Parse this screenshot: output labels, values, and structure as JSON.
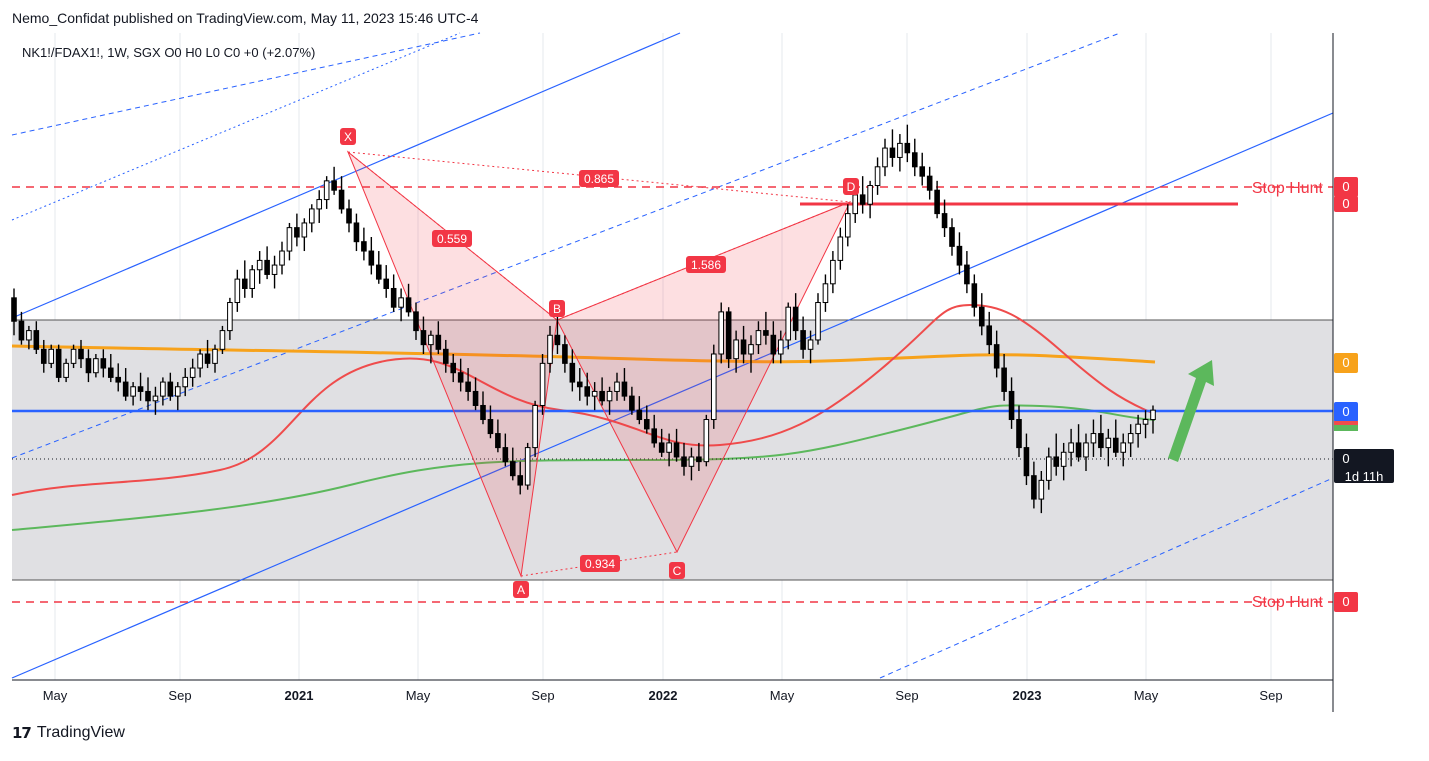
{
  "header": {
    "published": "Nemo_Confidat published on TradingView.com, May 11, 2023 15:46 UTC-4"
  },
  "brand": {
    "logo": "17",
    "name": "TradingView"
  },
  "colors": {
    "background": "#d9dbe0",
    "panel": "#ffffff",
    "up_candle": "#ffffff",
    "down_candle": "#000000",
    "wick": "#000000",
    "ma_red": "#ef4c4c",
    "ma_green": "#5cb85c",
    "ma_orange": "#f7a21b",
    "h_blue": "#2962ff",
    "channel_blue": "#2962ff",
    "pattern": "#f23645",
    "stop_hunt": "#f23645"
  },
  "chart_data": {
    "type": "candlestick",
    "symbol_legend": "NK1!/FDAX1!, 1W, SGX  O0  H0  L0  C0  +0 (+2.07%)",
    "x_tick_labels": [
      "May",
      "Sep",
      "2021",
      "May",
      "Sep",
      "2022",
      "May",
      "Sep",
      "2023",
      "May",
      "Sep"
    ],
    "price_labels": [
      {
        "id": "stop-hunt-upper-a",
        "text": "0",
        "color": "#f23645"
      },
      {
        "id": "stop-hunt-upper-b",
        "text": "0",
        "color": "#f23645"
      },
      {
        "id": "ma-orange",
        "text": "0",
        "color": "#f7a21b"
      },
      {
        "id": "blue-level",
        "text": "0",
        "color": "#2962ff"
      },
      {
        "id": "current",
        "text": "0",
        "sub": "1d 11h",
        "color": "#131722"
      },
      {
        "id": "stop-hunt-lower",
        "text": "0",
        "color": "#f23645"
      }
    ],
    "stop_hunt_labels": [
      "Stop Hunt",
      "Stop Hunt"
    ],
    "harmonic_points": [
      "X",
      "A",
      "B",
      "C",
      "D"
    ],
    "harmonic_ratios": [
      "0.865",
      "0.559",
      "1.586",
      "0.934"
    ],
    "moving_averages": [
      "red",
      "green",
      "orange"
    ],
    "candles_note": "weekly OHLC, relative chart scale (price axis values shown as 0)",
    "ohlc": [
      [
        0.62,
        0.64,
        0.54,
        0.57
      ],
      [
        0.57,
        0.59,
        0.52,
        0.53
      ],
      [
        0.53,
        0.56,
        0.51,
        0.55
      ],
      [
        0.55,
        0.57,
        0.5,
        0.51
      ],
      [
        0.51,
        0.53,
        0.46,
        0.48
      ],
      [
        0.48,
        0.52,
        0.47,
        0.51
      ],
      [
        0.51,
        0.52,
        0.44,
        0.45
      ],
      [
        0.45,
        0.49,
        0.44,
        0.48
      ],
      [
        0.48,
        0.52,
        0.47,
        0.51
      ],
      [
        0.51,
        0.53,
        0.47,
        0.49
      ],
      [
        0.49,
        0.51,
        0.44,
        0.46
      ],
      [
        0.46,
        0.5,
        0.45,
        0.49
      ],
      [
        0.49,
        0.51,
        0.45,
        0.47
      ],
      [
        0.47,
        0.5,
        0.44,
        0.45
      ],
      [
        0.45,
        0.48,
        0.42,
        0.44
      ],
      [
        0.44,
        0.47,
        0.4,
        0.41
      ],
      [
        0.41,
        0.44,
        0.39,
        0.43
      ],
      [
        0.43,
        0.46,
        0.4,
        0.42
      ],
      [
        0.42,
        0.45,
        0.38,
        0.4
      ],
      [
        0.4,
        0.43,
        0.37,
        0.41
      ],
      [
        0.41,
        0.45,
        0.39,
        0.44
      ],
      [
        0.44,
        0.46,
        0.4,
        0.41
      ],
      [
        0.41,
        0.44,
        0.38,
        0.43
      ],
      [
        0.43,
        0.47,
        0.41,
        0.45
      ],
      [
        0.45,
        0.49,
        0.43,
        0.47
      ],
      [
        0.47,
        0.51,
        0.45,
        0.5
      ],
      [
        0.5,
        0.53,
        0.47,
        0.48
      ],
      [
        0.48,
        0.52,
        0.46,
        0.51
      ],
      [
        0.51,
        0.56,
        0.5,
        0.55
      ],
      [
        0.55,
        0.62,
        0.53,
        0.61
      ],
      [
        0.61,
        0.68,
        0.59,
        0.66
      ],
      [
        0.66,
        0.7,
        0.62,
        0.64
      ],
      [
        0.64,
        0.69,
        0.62,
        0.68
      ],
      [
        0.68,
        0.72,
        0.65,
        0.7
      ],
      [
        0.7,
        0.73,
        0.66,
        0.67
      ],
      [
        0.67,
        0.71,
        0.64,
        0.69
      ],
      [
        0.69,
        0.74,
        0.67,
        0.72
      ],
      [
        0.72,
        0.78,
        0.7,
        0.77
      ],
      [
        0.77,
        0.8,
        0.73,
        0.75
      ],
      [
        0.75,
        0.79,
        0.72,
        0.78
      ],
      [
        0.78,
        0.82,
        0.76,
        0.81
      ],
      [
        0.81,
        0.85,
        0.78,
        0.83
      ],
      [
        0.83,
        0.88,
        0.81,
        0.87
      ],
      [
        0.87,
        0.9,
        0.84,
        0.85
      ],
      [
        0.85,
        0.88,
        0.8,
        0.81
      ],
      [
        0.81,
        0.83,
        0.76,
        0.78
      ],
      [
        0.78,
        0.8,
        0.72,
        0.74
      ],
      [
        0.74,
        0.77,
        0.7,
        0.72
      ],
      [
        0.72,
        0.75,
        0.67,
        0.69
      ],
      [
        0.69,
        0.72,
        0.65,
        0.66
      ],
      [
        0.66,
        0.69,
        0.62,
        0.64
      ],
      [
        0.64,
        0.67,
        0.59,
        0.6
      ],
      [
        0.6,
        0.64,
        0.57,
        0.62
      ],
      [
        0.62,
        0.65,
        0.58,
        0.59
      ],
      [
        0.59,
        0.61,
        0.53,
        0.55
      ],
      [
        0.55,
        0.58,
        0.5,
        0.52
      ],
      [
        0.52,
        0.55,
        0.48,
        0.54
      ],
      [
        0.54,
        0.57,
        0.5,
        0.51
      ],
      [
        0.51,
        0.53,
        0.46,
        0.48
      ],
      [
        0.48,
        0.5,
        0.44,
        0.46
      ],
      [
        0.46,
        0.49,
        0.42,
        0.44
      ],
      [
        0.44,
        0.47,
        0.4,
        0.42
      ],
      [
        0.42,
        0.45,
        0.38,
        0.39
      ],
      [
        0.39,
        0.42,
        0.35,
        0.36
      ],
      [
        0.36,
        0.39,
        0.32,
        0.33
      ],
      [
        0.33,
        0.36,
        0.29,
        0.3
      ],
      [
        0.3,
        0.33,
        0.26,
        0.27
      ],
      [
        0.27,
        0.3,
        0.23,
        0.24
      ],
      [
        0.24,
        0.27,
        0.2,
        0.22
      ],
      [
        0.22,
        0.31,
        0.21,
        0.3
      ],
      [
        0.3,
        0.4,
        0.28,
        0.39
      ],
      [
        0.39,
        0.5,
        0.37,
        0.48
      ],
      [
        0.48,
        0.56,
        0.46,
        0.54
      ],
      [
        0.54,
        0.58,
        0.5,
        0.52
      ],
      [
        0.52,
        0.54,
        0.46,
        0.48
      ],
      [
        0.48,
        0.51,
        0.42,
        0.44
      ],
      [
        0.44,
        0.47,
        0.4,
        0.43
      ],
      [
        0.43,
        0.46,
        0.39,
        0.41
      ],
      [
        0.41,
        0.44,
        0.38,
        0.42
      ],
      [
        0.42,
        0.45,
        0.39,
        0.4
      ],
      [
        0.4,
        0.43,
        0.37,
        0.42
      ],
      [
        0.42,
        0.46,
        0.4,
        0.44
      ],
      [
        0.44,
        0.47,
        0.4,
        0.41
      ],
      [
        0.41,
        0.43,
        0.37,
        0.38
      ],
      [
        0.38,
        0.41,
        0.35,
        0.36
      ],
      [
        0.36,
        0.39,
        0.33,
        0.34
      ],
      [
        0.34,
        0.37,
        0.3,
        0.31
      ],
      [
        0.31,
        0.34,
        0.28,
        0.29
      ],
      [
        0.29,
        0.33,
        0.26,
        0.31
      ],
      [
        0.31,
        0.34,
        0.27,
        0.28
      ],
      [
        0.28,
        0.31,
        0.24,
        0.26
      ],
      [
        0.26,
        0.3,
        0.23,
        0.28
      ],
      [
        0.28,
        0.31,
        0.25,
        0.27
      ],
      [
        0.27,
        0.37,
        0.26,
        0.36
      ],
      [
        0.36,
        0.52,
        0.34,
        0.5
      ],
      [
        0.5,
        0.61,
        0.48,
        0.59
      ],
      [
        0.59,
        0.6,
        0.47,
        0.49
      ],
      [
        0.49,
        0.55,
        0.46,
        0.53
      ],
      [
        0.53,
        0.56,
        0.48,
        0.5
      ],
      [
        0.5,
        0.54,
        0.46,
        0.52
      ],
      [
        0.52,
        0.57,
        0.5,
        0.55
      ],
      [
        0.55,
        0.59,
        0.52,
        0.54
      ],
      [
        0.54,
        0.57,
        0.48,
        0.5
      ],
      [
        0.5,
        0.55,
        0.48,
        0.53
      ],
      [
        0.53,
        0.61,
        0.51,
        0.6
      ],
      [
        0.6,
        0.63,
        0.53,
        0.55
      ],
      [
        0.55,
        0.58,
        0.49,
        0.51
      ],
      [
        0.51,
        0.55,
        0.48,
        0.53
      ],
      [
        0.53,
        0.63,
        0.52,
        0.61
      ],
      [
        0.61,
        0.67,
        0.59,
        0.65
      ],
      [
        0.65,
        0.72,
        0.63,
        0.7
      ],
      [
        0.7,
        0.77,
        0.68,
        0.75
      ],
      [
        0.75,
        0.82,
        0.73,
        0.8
      ],
      [
        0.8,
        0.86,
        0.78,
        0.84
      ],
      [
        0.84,
        0.88,
        0.8,
        0.82
      ],
      [
        0.82,
        0.87,
        0.79,
        0.86
      ],
      [
        0.86,
        0.92,
        0.84,
        0.9
      ],
      [
        0.9,
        0.96,
        0.88,
        0.94
      ],
      [
        0.94,
        0.98,
        0.9,
        0.92
      ],
      [
        0.92,
        0.97,
        0.89,
        0.95
      ],
      [
        0.95,
        0.99,
        0.91,
        0.93
      ],
      [
        0.93,
        0.96,
        0.88,
        0.9
      ],
      [
        0.9,
        0.93,
        0.86,
        0.88
      ],
      [
        0.88,
        0.9,
        0.83,
        0.85
      ],
      [
        0.85,
        0.87,
        0.79,
        0.8
      ],
      [
        0.8,
        0.83,
        0.75,
        0.77
      ],
      [
        0.77,
        0.79,
        0.71,
        0.73
      ],
      [
        0.73,
        0.76,
        0.67,
        0.69
      ],
      [
        0.69,
        0.72,
        0.63,
        0.65
      ],
      [
        0.65,
        0.67,
        0.58,
        0.6
      ],
      [
        0.6,
        0.63,
        0.54,
        0.56
      ],
      [
        0.56,
        0.59,
        0.5,
        0.52
      ],
      [
        0.52,
        0.55,
        0.45,
        0.47
      ],
      [
        0.47,
        0.5,
        0.4,
        0.42
      ],
      [
        0.42,
        0.45,
        0.34,
        0.36
      ],
      [
        0.36,
        0.39,
        0.28,
        0.3
      ],
      [
        0.3,
        0.33,
        0.22,
        0.24
      ],
      [
        0.24,
        0.27,
        0.17,
        0.19
      ],
      [
        0.19,
        0.25,
        0.16,
        0.23
      ],
      [
        0.23,
        0.3,
        0.21,
        0.28
      ],
      [
        0.28,
        0.33,
        0.24,
        0.26
      ],
      [
        0.26,
        0.31,
        0.23,
        0.29
      ],
      [
        0.29,
        0.34,
        0.26,
        0.31
      ],
      [
        0.31,
        0.35,
        0.27,
        0.28
      ],
      [
        0.28,
        0.33,
        0.25,
        0.31
      ],
      [
        0.31,
        0.36,
        0.28,
        0.33
      ],
      [
        0.33,
        0.37,
        0.28,
        0.3
      ],
      [
        0.3,
        0.34,
        0.26,
        0.32
      ],
      [
        0.32,
        0.36,
        0.28,
        0.29
      ],
      [
        0.29,
        0.33,
        0.26,
        0.31
      ],
      [
        0.31,
        0.35,
        0.28,
        0.33
      ],
      [
        0.33,
        0.37,
        0.3,
        0.35
      ],
      [
        0.35,
        0.38,
        0.32,
        0.36
      ],
      [
        0.36,
        0.39,
        0.33,
        0.38
      ]
    ]
  }
}
